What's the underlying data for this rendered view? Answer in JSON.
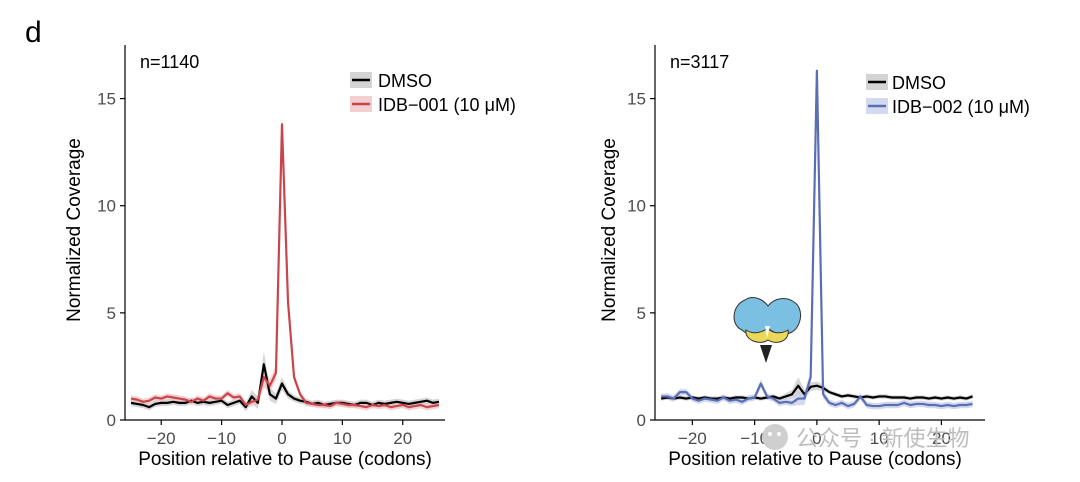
{
  "figure": {
    "panel_letter": "d",
    "watermark": "公众号 · 新使生物"
  },
  "chart_data": [
    {
      "type": "line",
      "n_label": "n=1140",
      "xlabel": "Position relative to Pause (codons)",
      "ylabel": "Normalized Coverage",
      "xlim": [
        -26,
        27
      ],
      "ylim": [
        0,
        17.5
      ],
      "xticks": [
        -20,
        -10,
        0,
        10,
        20
      ],
      "xtick_labels": [
        "−20",
        "−10",
        "0",
        "10",
        "20"
      ],
      "yticks": [
        0,
        5,
        10,
        15
      ],
      "ytick_labels": [
        "0",
        "5",
        "10",
        "15"
      ],
      "x": [
        -25,
        -24,
        -23,
        -22,
        -21,
        -20,
        -19,
        -18,
        -17,
        -16,
        -15,
        -14,
        -13,
        -12,
        -11,
        -10,
        -9,
        -8,
        -7,
        -6,
        -5,
        -4,
        -3,
        -2,
        -1,
        0,
        1,
        2,
        3,
        4,
        5,
        6,
        7,
        8,
        9,
        10,
        11,
        12,
        13,
        14,
        15,
        16,
        17,
        18,
        19,
        20,
        21,
        22,
        23,
        24,
        25,
        26
      ],
      "series": [
        {
          "name": "DMSO",
          "color": "#000000",
          "band_color": "#c8c8c8",
          "values": [
            0.8,
            0.75,
            0.7,
            0.6,
            0.75,
            0.8,
            0.8,
            0.85,
            0.8,
            0.8,
            0.9,
            0.8,
            0.85,
            0.8,
            0.85,
            0.9,
            0.7,
            0.8,
            0.9,
            0.6,
            1.1,
            0.8,
            2.6,
            1.2,
            1.0,
            1.7,
            1.2,
            1.0,
            0.9,
            0.85,
            0.75,
            0.8,
            0.7,
            0.75,
            0.8,
            0.8,
            0.75,
            0.7,
            0.8,
            0.8,
            0.7,
            0.8,
            0.75,
            0.8,
            0.85,
            0.8,
            0.75,
            0.8,
            0.85,
            0.9,
            0.8,
            0.85
          ],
          "band": [
            0.15,
            0.15,
            0.15,
            0.15,
            0.15,
            0.15,
            0.15,
            0.15,
            0.15,
            0.15,
            0.15,
            0.15,
            0.15,
            0.15,
            0.15,
            0.15,
            0.15,
            0.15,
            0.15,
            0.2,
            0.3,
            0.3,
            0.6,
            0.3,
            0.25,
            0.3,
            0.2,
            0.15,
            0.15,
            0.15,
            0.15,
            0.15,
            0.15,
            0.15,
            0.15,
            0.15,
            0.15,
            0.15,
            0.15,
            0.15,
            0.15,
            0.15,
            0.15,
            0.15,
            0.15,
            0.15,
            0.15,
            0.15,
            0.15,
            0.15,
            0.15,
            0.15
          ]
        },
        {
          "name": "IDB−001 (10 μM)",
          "color": "#c9454b",
          "band_color": "#efc3c5",
          "values": [
            1.0,
            0.95,
            0.85,
            0.9,
            1.05,
            1.0,
            1.1,
            1.05,
            1.0,
            0.95,
            0.85,
            1.0,
            0.9,
            1.1,
            1.0,
            1.0,
            1.25,
            1.05,
            1.1,
            0.7,
            0.85,
            0.95,
            2.0,
            1.6,
            2.2,
            13.8,
            5.5,
            2.0,
            1.2,
            0.8,
            0.75,
            0.7,
            0.7,
            0.65,
            0.8,
            0.75,
            0.7,
            0.7,
            0.65,
            0.6,
            0.7,
            0.65,
            0.7,
            0.6,
            0.65,
            0.7,
            0.6,
            0.65,
            0.7,
            0.6,
            0.65,
            0.7
          ],
          "band": [
            0.15,
            0.15,
            0.15,
            0.15,
            0.15,
            0.15,
            0.15,
            0.15,
            0.15,
            0.15,
            0.15,
            0.15,
            0.15,
            0.15,
            0.15,
            0.15,
            0.15,
            0.15,
            0.15,
            0.15,
            0.2,
            0.2,
            0.5,
            0.3,
            0.35,
            0.3,
            0.3,
            0.2,
            0.15,
            0.15,
            0.15,
            0.15,
            0.15,
            0.15,
            0.15,
            0.15,
            0.15,
            0.15,
            0.15,
            0.15,
            0.15,
            0.15,
            0.15,
            0.15,
            0.15,
            0.15,
            0.15,
            0.15,
            0.15,
            0.15,
            0.15,
            0.15
          ]
        }
      ]
    },
    {
      "type": "line",
      "n_label": "n=3117",
      "xlabel": "Position relative to Pause (codons)",
      "ylabel": "Normalized Coverage",
      "xlim": [
        -26,
        27
      ],
      "ylim": [
        0,
        17.5
      ],
      "xticks": [
        -20,
        -10,
        0,
        10,
        20
      ],
      "xtick_labels": [
        "−20",
        "−10",
        "0",
        "10",
        "20"
      ],
      "yticks": [
        0,
        5,
        10,
        15
      ],
      "ytick_labels": [
        "0",
        "5",
        "10",
        "15"
      ],
      "annotation": "ribosome icon with arrow pointing at peak near -9",
      "x": [
        -25,
        -24,
        -23,
        -22,
        -21,
        -20,
        -19,
        -18,
        -17,
        -16,
        -15,
        -14,
        -13,
        -12,
        -11,
        -10,
        -9,
        -8,
        -7,
        -6,
        -5,
        -4,
        -3,
        -2,
        -1,
        0,
        1,
        2,
        3,
        4,
        5,
        6,
        7,
        8,
        9,
        10,
        11,
        12,
        13,
        14,
        15,
        16,
        17,
        18,
        19,
        20,
        21,
        22,
        23,
        24,
        25
      ],
      "series": [
        {
          "name": "DMSO",
          "color": "#000000",
          "band_color": "#c8c8c8",
          "values": [
            1.0,
            1.05,
            1.0,
            1.05,
            1.0,
            1.05,
            1.0,
            1.05,
            1.0,
            1.0,
            1.05,
            1.0,
            1.05,
            1.05,
            1.0,
            1.05,
            1.0,
            1.05,
            1.1,
            1.0,
            1.1,
            1.2,
            1.6,
            1.2,
            1.55,
            1.6,
            1.5,
            1.3,
            1.2,
            1.1,
            1.15,
            1.1,
            1.05,
            1.1,
            1.05,
            1.1,
            1.1,
            1.05,
            1.05,
            1.05,
            1.0,
            1.05,
            1.05,
            1.0,
            1.05,
            1.0,
            1.05,
            1.0,
            1.05,
            1.0,
            1.1
          ],
          "band": [
            0.1,
            0.1,
            0.1,
            0.1,
            0.1,
            0.1,
            0.1,
            0.1,
            0.1,
            0.1,
            0.1,
            0.1,
            0.1,
            0.1,
            0.1,
            0.1,
            0.1,
            0.1,
            0.1,
            0.1,
            0.15,
            0.2,
            0.4,
            0.2,
            0.2,
            0.2,
            0.15,
            0.1,
            0.1,
            0.1,
            0.1,
            0.1,
            0.1,
            0.1,
            0.1,
            0.1,
            0.1,
            0.1,
            0.1,
            0.1,
            0.1,
            0.1,
            0.1,
            0.1,
            0.1,
            0.1,
            0.1,
            0.1,
            0.1,
            0.1,
            0.1
          ]
        },
        {
          "name": "IDB−002 (10 μM)",
          "color": "#5a6fb3",
          "band_color": "#c5cde8",
          "values": [
            1.1,
            1.1,
            1.0,
            1.3,
            1.3,
            1.0,
            0.9,
            1.0,
            0.95,
            0.9,
            1.05,
            0.9,
            0.95,
            0.85,
            1.0,
            1.05,
            1.7,
            1.1,
            1.0,
            0.8,
            0.85,
            0.8,
            1.0,
            1.0,
            2.0,
            16.3,
            1.2,
            0.8,
            0.7,
            0.8,
            0.65,
            0.75,
            1.1,
            0.7,
            0.65,
            0.65,
            0.7,
            0.7,
            0.7,
            0.8,
            0.7,
            0.75,
            0.75,
            0.7,
            0.7,
            0.65,
            0.7,
            0.65,
            0.7,
            0.7,
            0.75
          ],
          "band": [
            0.15,
            0.15,
            0.15,
            0.15,
            0.15,
            0.15,
            0.15,
            0.15,
            0.15,
            0.15,
            0.15,
            0.15,
            0.15,
            0.15,
            0.15,
            0.15,
            0.2,
            0.15,
            0.15,
            0.15,
            0.15,
            0.15,
            0.3,
            0.3,
            0.3,
            0.3,
            0.2,
            0.15,
            0.15,
            0.15,
            0.15,
            0.15,
            0.15,
            0.15,
            0.15,
            0.15,
            0.15,
            0.15,
            0.15,
            0.15,
            0.15,
            0.15,
            0.15,
            0.15,
            0.15,
            0.15,
            0.15,
            0.15,
            0.15,
            0.15,
            0.15
          ]
        }
      ]
    }
  ]
}
